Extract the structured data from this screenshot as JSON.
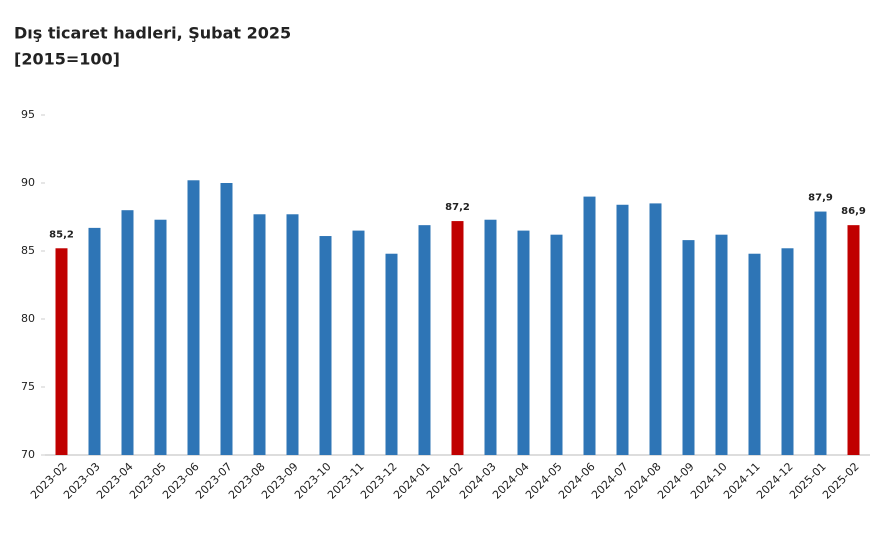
{
  "chart_data": {
    "type": "bar",
    "title": "Dış ticaret hadleri, Şubat 2025",
    "subtitle": "[2015=100]",
    "categories": [
      "2023-02",
      "2023-03",
      "2023-04",
      "2023-05",
      "2023-06",
      "2023-07",
      "2023-08",
      "2023-09",
      "2023-10",
      "2023-11",
      "2023-12",
      "2024-01",
      "2024-02",
      "2024-03",
      "2024-04",
      "2024-05",
      "2024-06",
      "2024-07",
      "2024-08",
      "2024-09",
      "2024-10",
      "2024-11",
      "2024-12",
      "2025-01",
      "2025-02"
    ],
    "values": [
      85.2,
      86.7,
      88.0,
      87.3,
      90.2,
      90.0,
      87.7,
      87.7,
      86.1,
      86.5,
      84.8,
      86.9,
      87.2,
      87.3,
      86.5,
      86.2,
      89.0,
      88.4,
      88.5,
      85.8,
      86.2,
      84.8,
      85.2,
      87.9,
      86.9
    ],
    "value_labels": [
      "85,2",
      null,
      null,
      null,
      null,
      null,
      null,
      null,
      null,
      null,
      null,
      null,
      "87,2",
      null,
      null,
      null,
      null,
      null,
      null,
      null,
      null,
      null,
      null,
      "87,9",
      "86,9"
    ],
    "colors": [
      "#c00000",
      "#2e75b6",
      "#2e75b6",
      "#2e75b6",
      "#2e75b6",
      "#2e75b6",
      "#2e75b6",
      "#2e75b6",
      "#2e75b6",
      "#2e75b6",
      "#2e75b6",
      "#2e75b6",
      "#c00000",
      "#2e75b6",
      "#2e75b6",
      "#2e75b6",
      "#2e75b6",
      "#2e75b6",
      "#2e75b6",
      "#2e75b6",
      "#2e75b6",
      "#2e75b6",
      "#2e75b6",
      "#2e75b6",
      "#c00000"
    ],
    "ylim": [
      70,
      95
    ],
    "yticks": [
      70,
      75,
      80,
      85,
      90,
      95
    ],
    "grid": false
  }
}
